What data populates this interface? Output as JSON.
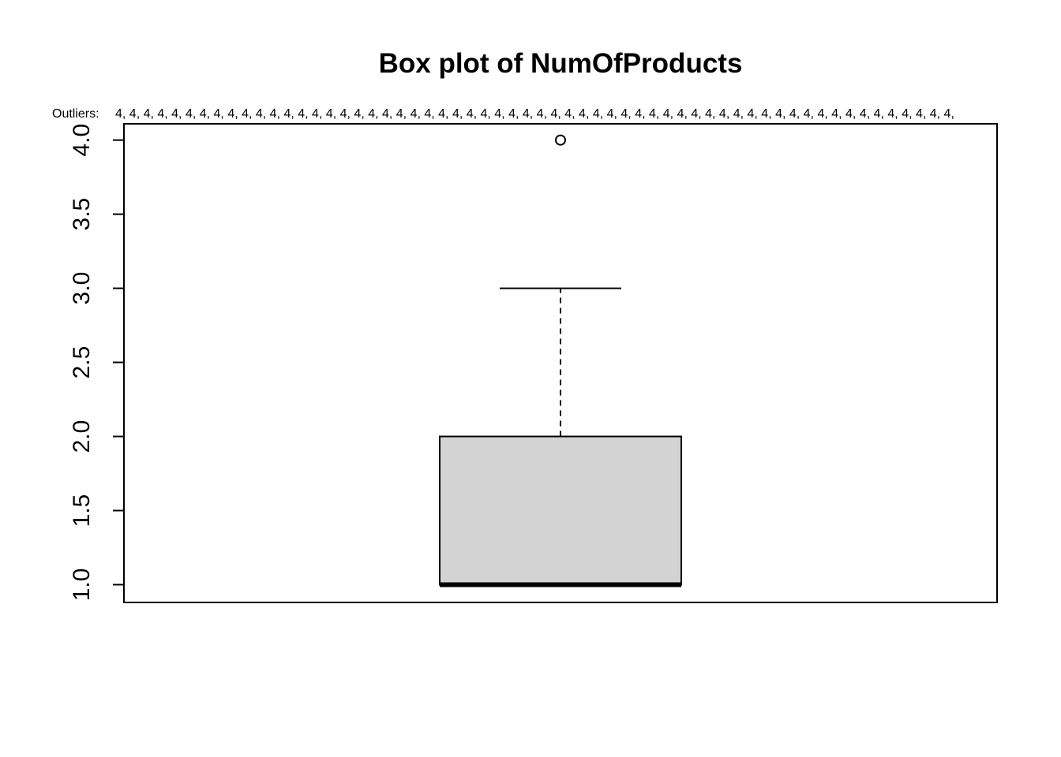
{
  "chart_data": {
    "type": "box",
    "title": "Box plot of NumOfProducts",
    "xlabel": "",
    "ylabel": "",
    "ylim": [
      0.88,
      4.11
    ],
    "yticks": [
      1.0,
      1.5,
      2.0,
      2.5,
      3.0,
      3.5,
      4.0
    ],
    "ytick_labels": [
      "1.0",
      "1.5",
      "2.0",
      "2.5",
      "3.0",
      "3.5",
      "4.0"
    ],
    "box": {
      "min": 1,
      "q1": 1,
      "median": 1,
      "q3": 2,
      "max": 3,
      "outliers": [
        4
      ]
    },
    "outliers_label": "Outliers:",
    "outliers_list": "4, 4, 4, 4, 4, 4, 4, 4, 4, 4, 4, 4, 4, 4, 4, 4, 4, 4, 4, 4, 4, 4, 4, 4, 4, 4, 4, 4, 4, 4, 4, 4, 4, 4, 4, 4, 4, 4, 4, 4, 4, 4, 4, 4, 4, 4, 4, 4, 4, 4, 4, 4, 4, 4, 4, 4, 4, 4, 4, 4,",
    "box_fill": "#d3d3d3",
    "line_color": "#000000",
    "grid": false,
    "legend": "none"
  }
}
